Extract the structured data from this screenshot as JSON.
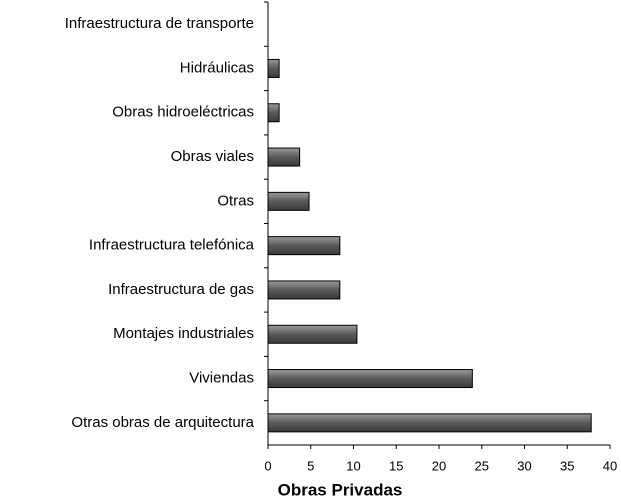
{
  "chart_data": {
    "type": "barh",
    "xlabel": "Obras Privadas",
    "categories": [
      "Infraestructura de transporte",
      "Hidráulicas",
      "Obras hidroeléctricas",
      "Obras viales",
      "Otras",
      "Infraestructura telefónica",
      "Infraestructura de gas",
      "Montajes industriales",
      "Viviendas",
      "Otras obras de arquitectura"
    ],
    "values": [
      0,
      1.3,
      1.3,
      3.7,
      4.8,
      8.4,
      8.4,
      10.4,
      23.9,
      37.8
    ],
    "color": "#666666",
    "xlim": [
      0,
      40
    ],
    "xticks": [
      0,
      5,
      10,
      15,
      20,
      25,
      30,
      35,
      40
    ],
    "grid": false
  }
}
